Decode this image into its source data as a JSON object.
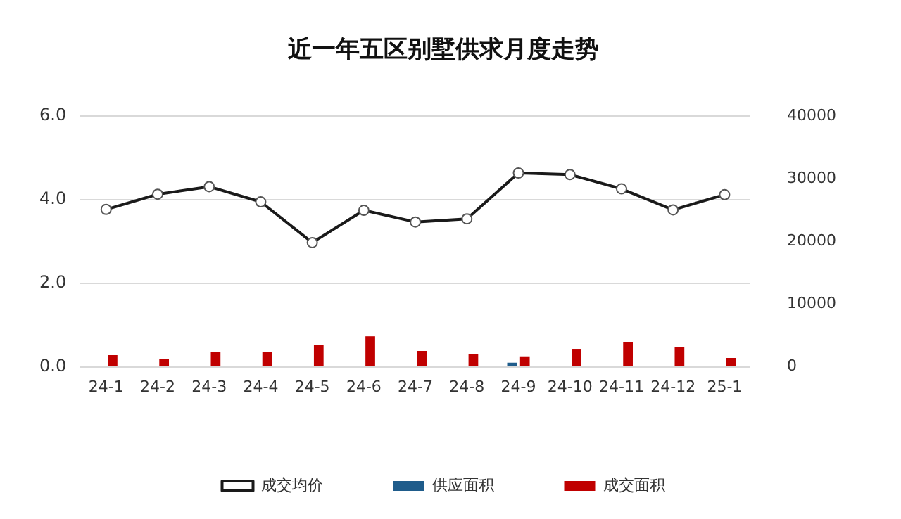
{
  "chart_data": {
    "type": "bar",
    "title": "近一年五区别墅供求月度走势",
    "categories": [
      "24-1",
      "24-2",
      "24-3",
      "24-4",
      "24-5",
      "24-6",
      "24-7",
      "24-8",
      "24-9",
      "24-10",
      "24-11",
      "24-12",
      "25-1"
    ],
    "series": [
      {
        "name": "供应面积",
        "color": "#1f5c8b",
        "values": [
          0,
          0,
          0,
          0,
          0,
          0,
          0,
          0,
          0.1,
          0,
          0,
          0,
          0
        ]
      },
      {
        "name": "成交面积",
        "color": "#c00000",
        "values": [
          0.28,
          0.19,
          0.35,
          0.35,
          0.52,
          0.73,
          0.38,
          0.31,
          0.25,
          0.43,
          0.59,
          0.48,
          0.21
        ]
      },
      {
        "name": "成交均价",
        "type": "line",
        "axis": "y2",
        "color": "#1a1a1a",
        "marker": "circle",
        "values": [
          25090,
          27510,
          28720,
          26300,
          19810,
          24950,
          23090,
          23590,
          30900,
          30650,
          28370,
          25020,
          27440
        ]
      }
    ],
    "ylim": [
      0,
      6
    ],
    "yticks": [
      {
        "value": 0,
        "label": "0.0"
      },
      {
        "value": 2,
        "label": "2.0"
      },
      {
        "value": 4,
        "label": "4.0"
      },
      {
        "value": 6,
        "label": "6.0"
      }
    ],
    "y2lim": [
      0,
      40000
    ],
    "y2ticks": [
      0,
      10000,
      20000,
      30000,
      40000
    ],
    "grid": "y",
    "legend": "bottom"
  }
}
